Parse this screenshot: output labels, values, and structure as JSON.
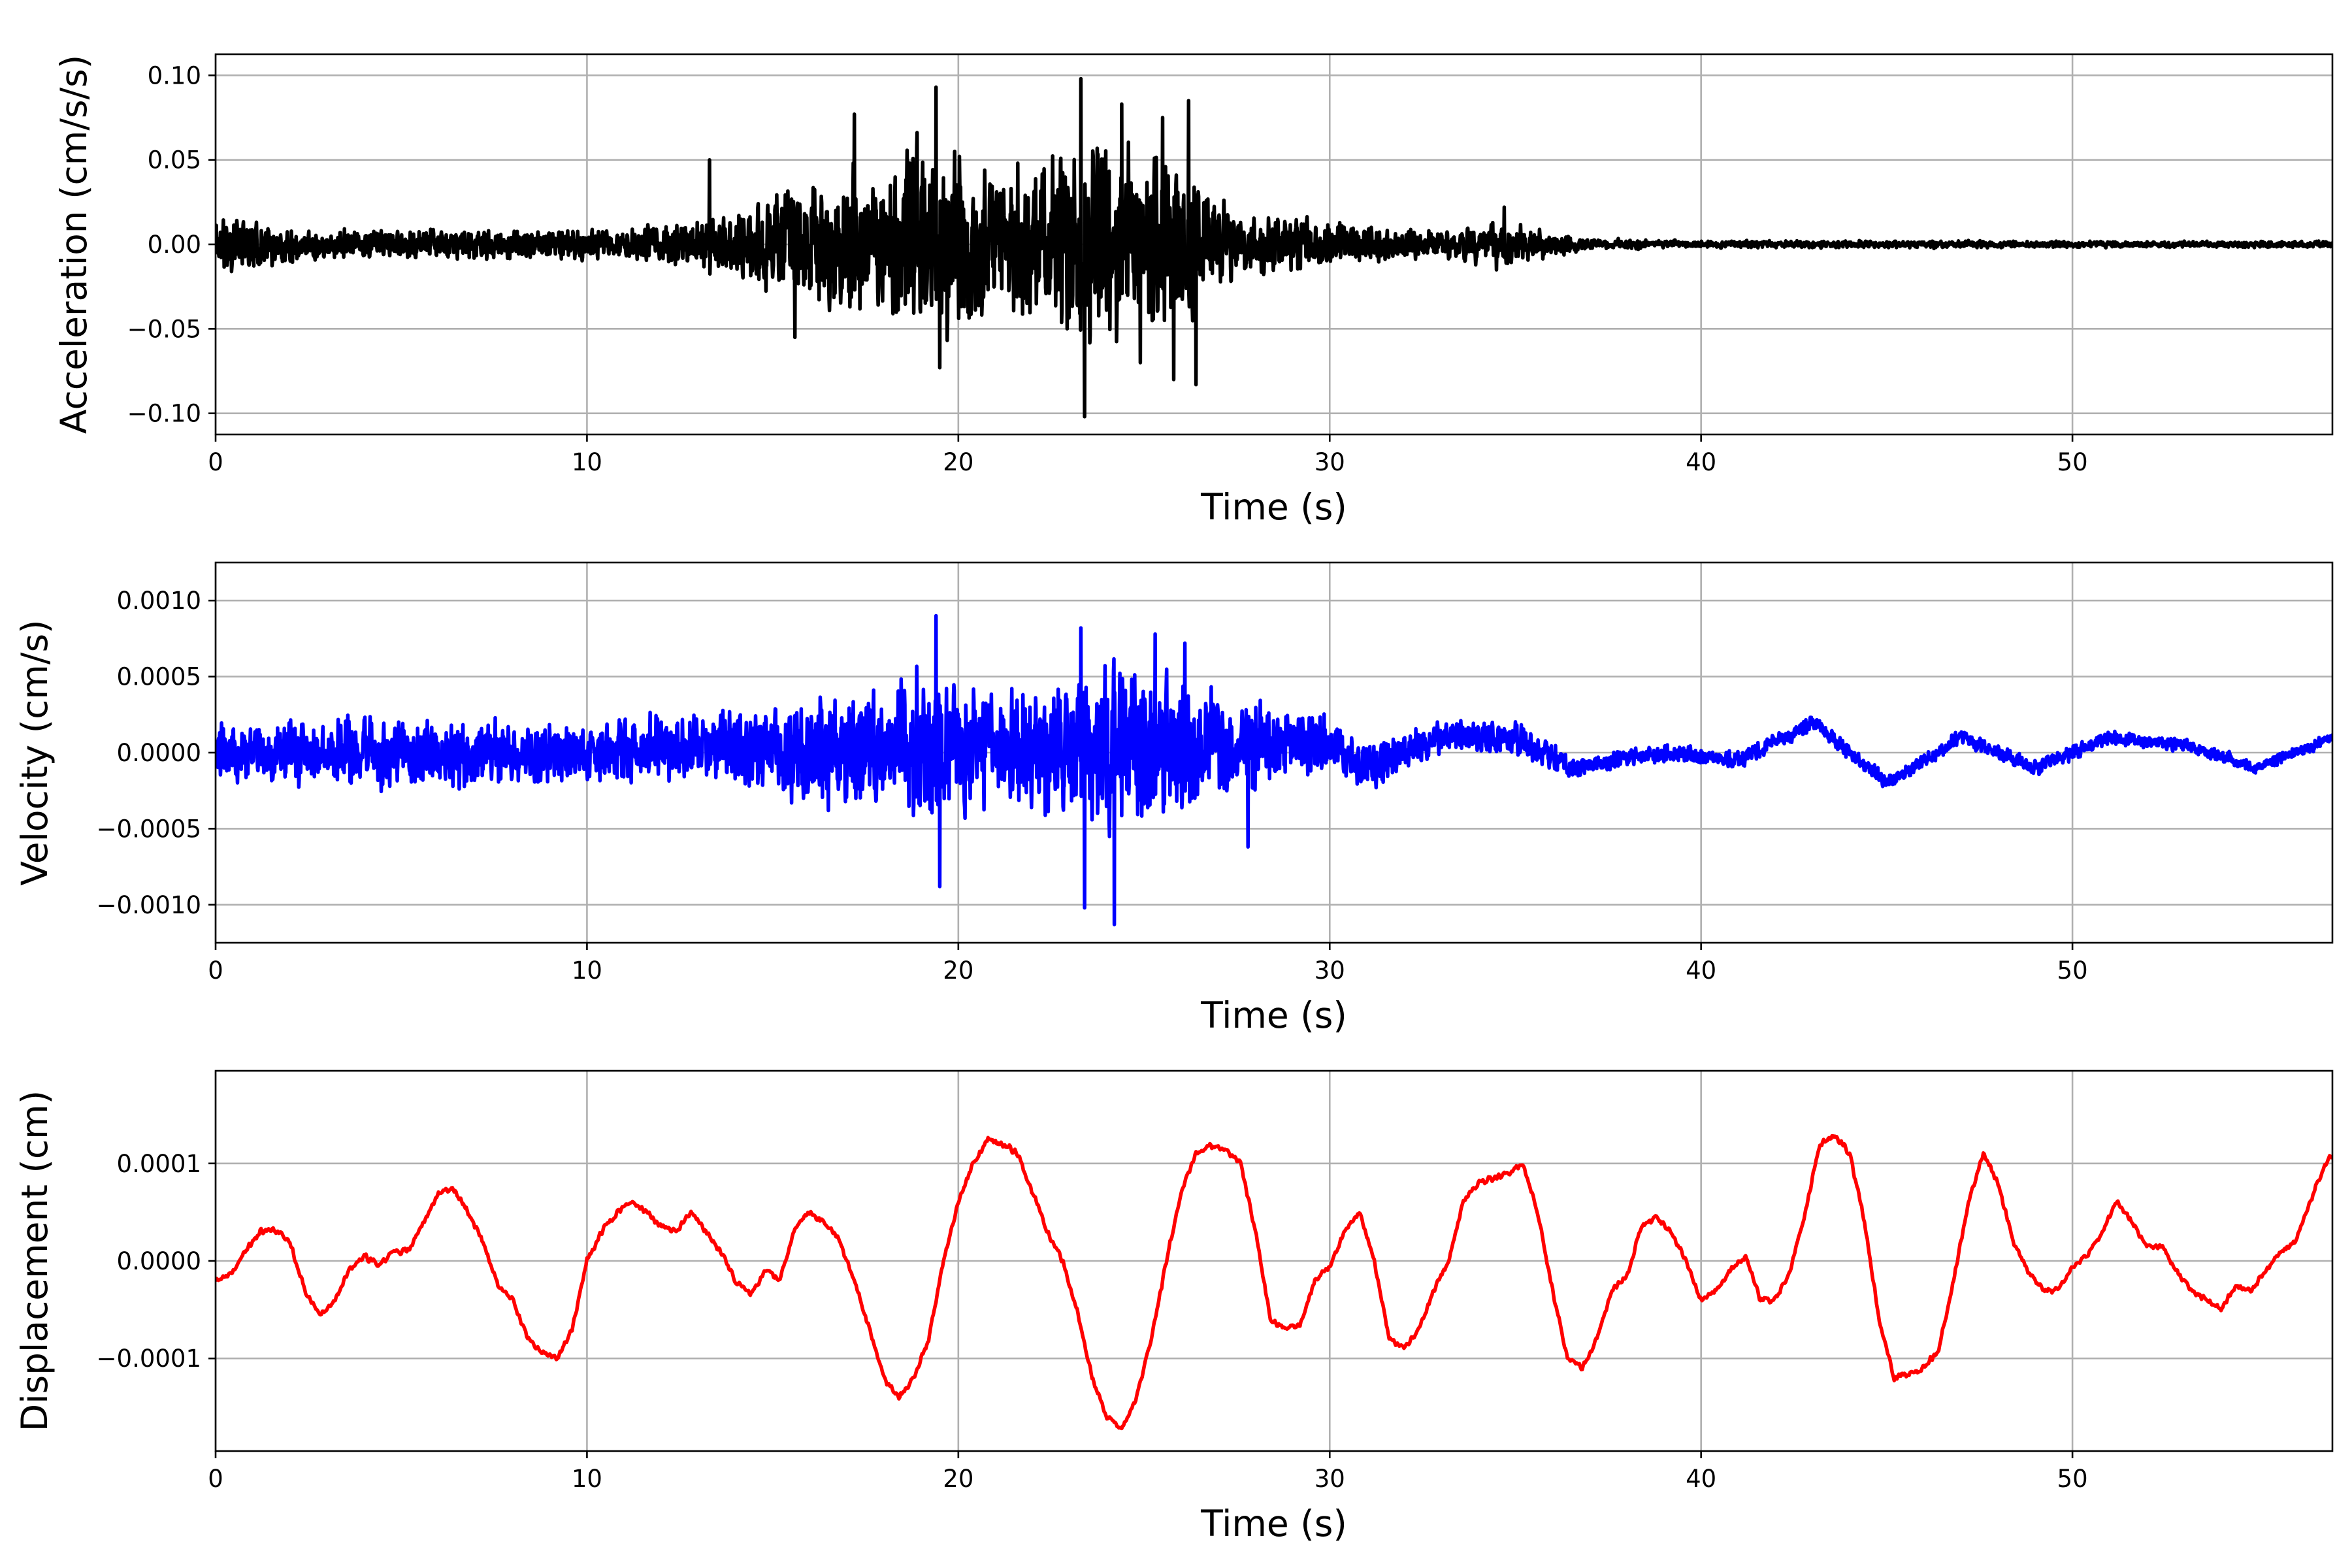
{
  "chart_data": [
    {
      "type": "line",
      "title": "",
      "xlabel": "Time (s)",
      "ylabel": "Acceleration (cm/s/s)",
      "xlim": [
        0,
        57
      ],
      "ylim": [
        -0.1125,
        0.1125
      ],
      "xticks": [
        0,
        10,
        20,
        30,
        40,
        50
      ],
      "xtick_labels": [
        "0",
        "10",
        "20",
        "30",
        "40",
        "50"
      ],
      "yticks": [
        -0.1,
        -0.05,
        0.0,
        0.05,
        0.1
      ],
      "ytick_labels": [
        "−0.10",
        "−0.05",
        "0.00",
        "0.05",
        "0.10"
      ],
      "grid": true,
      "series": [
        {
          "color": "#000000",
          "envelope": [
            [
              0,
              0.028
            ],
            [
              1,
              0.018
            ],
            [
              3,
              0.012
            ],
            [
              6,
              0.011
            ],
            [
              9,
              0.011
            ],
            [
              11,
              0.012
            ],
            [
              13,
              0.02
            ],
            [
              14,
              0.025
            ],
            [
              15,
              0.04
            ],
            [
              16,
              0.055
            ],
            [
              17,
              0.06
            ],
            [
              18,
              0.05
            ],
            [
              19,
              0.075
            ],
            [
              20,
              0.07
            ],
            [
              21,
              0.055
            ],
            [
              22,
              0.06
            ],
            [
              23,
              0.08
            ],
            [
              24,
              0.085
            ],
            [
              25,
              0.07
            ],
            [
              26,
              0.07
            ],
            [
              27,
              0.035
            ],
            [
              28,
              0.025
            ],
            [
              30,
              0.022
            ],
            [
              31,
              0.014
            ],
            [
              33,
              0.01
            ],
            [
              34.5,
              0.02
            ],
            [
              35.5,
              0.012
            ],
            [
              37,
              0.004
            ],
            [
              40,
              0.003
            ],
            [
              45,
              0.003
            ],
            [
              50,
              0.0025
            ],
            [
              57,
              0.0025
            ]
          ],
          "peaks": [
            [
              13.3,
              0.05
            ],
            [
              15.6,
              -0.055
            ],
            [
              17.2,
              0.077
            ],
            [
              19.4,
              0.093
            ],
            [
              19.5,
              -0.073
            ],
            [
              19.9,
              0.055
            ],
            [
              21.6,
              0.048
            ],
            [
              23.3,
              0.098
            ],
            [
              23.4,
              -0.102
            ],
            [
              24.4,
              0.083
            ],
            [
              24.9,
              -0.07
            ],
            [
              25.5,
              0.075
            ],
            [
              25.8,
              -0.08
            ],
            [
              26.2,
              0.085
            ],
            [
              26.4,
              -0.083
            ],
            [
              34.7,
              0.022
            ]
          ],
          "seed": 11
        }
      ]
    },
    {
      "type": "line",
      "title": "",
      "xlabel": "Time (s)",
      "ylabel": "Velocity (cm/s)",
      "xlim": [
        0,
        57
      ],
      "ylim": [
        -0.00125,
        0.00125
      ],
      "xticks": [
        0,
        10,
        20,
        30,
        40,
        50
      ],
      "xtick_labels": [
        "0",
        "10",
        "20",
        "30",
        "40",
        "50"
      ],
      "yticks": [
        -0.001,
        -0.0005,
        0.0,
        0.0005,
        0.001
      ],
      "ytick_labels": [
        "−0.0010",
        "−0.0005",
        "0.0000",
        "0.0005",
        "0.0010"
      ],
      "grid": true,
      "series": [
        {
          "color": "#0000ff",
          "trend": [
            [
              0,
              0
            ],
            [
              10,
              0
            ],
            [
              13,
              5e-05
            ],
            [
              15,
              0
            ],
            [
              20,
              0
            ],
            [
              25,
              5e-05
            ],
            [
              30,
              5e-05
            ],
            [
              31,
              -0.0001
            ],
            [
              33,
              0.0001
            ],
            [
              35,
              0.0001
            ],
            [
              36.5,
              -0.0001
            ],
            [
              39,
              0
            ],
            [
              41,
              -5e-05
            ],
            [
              43,
              0.0002
            ],
            [
              45,
              -0.0002
            ],
            [
              47,
              0.0001
            ],
            [
              49,
              -0.0001
            ],
            [
              51,
              0.0001
            ],
            [
              53,
              5e-05
            ],
            [
              55,
              -0.0001
            ],
            [
              57,
              0.0001
            ]
          ],
          "envelope": [
            [
              0,
              0.00025
            ],
            [
              5,
              0.0003
            ],
            [
              10,
              0.00025
            ],
            [
              13,
              0.0003
            ],
            [
              15,
              0.0004
            ],
            [
              17,
              0.0005
            ],
            [
              19,
              0.0006
            ],
            [
              21,
              0.0005
            ],
            [
              23,
              0.0007
            ],
            [
              24,
              0.00075
            ],
            [
              26,
              0.0006
            ],
            [
              27.5,
              0.0004
            ],
            [
              29,
              0.0003
            ],
            [
              31,
              0.0002
            ],
            [
              33,
              0.00015
            ],
            [
              35,
              0.00015
            ],
            [
              37,
              8e-05
            ],
            [
              57,
              5e-05
            ]
          ],
          "peaks": [
            [
              19.4,
              0.0009
            ],
            [
              19.5,
              -0.00088
            ],
            [
              23.3,
              0.00082
            ],
            [
              23.4,
              -0.00102
            ],
            [
              24.2,
              -0.00113
            ],
            [
              25.3,
              0.00078
            ],
            [
              26.1,
              0.00072
            ],
            [
              27.8,
              -0.00062
            ]
          ],
          "seed": 23
        }
      ]
    },
    {
      "type": "line",
      "title": "",
      "xlabel": "Time (s)",
      "ylabel": "Displacement (cm)",
      "xlim": [
        0,
        57
      ],
      "ylim": [
        -0.000195,
        0.000195
      ],
      "xticks": [
        0,
        10,
        20,
        30,
        40,
        50
      ],
      "xtick_labels": [
        "0",
        "10",
        "20",
        "30",
        "40",
        "50"
      ],
      "yticks": [
        -0.0001,
        0.0,
        0.0001
      ],
      "ytick_labels": [
        "−0.0001",
        "0.0000",
        "0.0001"
      ],
      "grid": true,
      "series": [
        {
          "color": "#ff0000",
          "points": [
            [
              0,
              -2e-05
            ],
            [
              0.4,
              -1.5e-05
            ],
            [
              0.8,
              1e-05
            ],
            [
              1.2,
              3e-05
            ],
            [
              1.6,
              3.2e-05
            ],
            [
              2.0,
              2e-05
            ],
            [
              2.4,
              -3e-05
            ],
            [
              2.8,
              -5.5e-05
            ],
            [
              3.2,
              -4e-05
            ],
            [
              3.6,
              -1e-05
            ],
            [
              4.0,
              5e-06
            ],
            [
              4.4,
              -5e-06
            ],
            [
              4.8,
              1e-05
            ],
            [
              5.2,
              1e-05
            ],
            [
              5.6,
              4e-05
            ],
            [
              6.0,
              7e-05
            ],
            [
              6.4,
              7.5e-05
            ],
            [
              6.8,
              5e-05
            ],
            [
              7.2,
              2e-05
            ],
            [
              7.6,
              -2.5e-05
            ],
            [
              8.0,
              -4e-05
            ],
            [
              8.4,
              -8e-05
            ],
            [
              8.8,
              -9.5e-05
            ],
            [
              9.2,
              -0.0001
            ],
            [
              9.6,
              -7e-05
            ],
            [
              10.0,
              0.0
            ],
            [
              10.4,
              3e-05
            ],
            [
              10.8,
              5e-05
            ],
            [
              11.2,
              6e-05
            ],
            [
              11.6,
              5e-05
            ],
            [
              12.0,
              3.5e-05
            ],
            [
              12.4,
              3e-05
            ],
            [
              12.8,
              5e-05
            ],
            [
              13.2,
              3e-05
            ],
            [
              13.6,
              1e-05
            ],
            [
              14.0,
              -2e-05
            ],
            [
              14.4,
              -3.5e-05
            ],
            [
              14.8,
              -1e-05
            ],
            [
              15.2,
              -2e-05
            ],
            [
              15.6,
              3.5e-05
            ],
            [
              16.0,
              5e-05
            ],
            [
              16.4,
              4e-05
            ],
            [
              16.8,
              2e-05
            ],
            [
              17.2,
              -2e-05
            ],
            [
              17.6,
              -7e-05
            ],
            [
              18.0,
              -0.00012
            ],
            [
              18.4,
              -0.00014
            ],
            [
              18.8,
              -0.00012
            ],
            [
              19.2,
              -8e-05
            ],
            [
              19.6,
              0.0
            ],
            [
              20.0,
              6e-05
            ],
            [
              20.4,
              0.0001
            ],
            [
              20.8,
              0.000125
            ],
            [
              21.2,
              0.00012
            ],
            [
              21.6,
              0.00011
            ],
            [
              22.0,
              7e-05
            ],
            [
              22.4,
              3e-05
            ],
            [
              22.8,
              0.0
            ],
            [
              23.2,
              -5e-05
            ],
            [
              23.6,
              -0.00012
            ],
            [
              24.0,
              -0.00016
            ],
            [
              24.4,
              -0.000172
            ],
            [
              24.8,
              -0.00014
            ],
            [
              25.2,
              -8e-05
            ],
            [
              25.6,
              0.0
            ],
            [
              26.0,
              7e-05
            ],
            [
              26.4,
              0.00011
            ],
            [
              26.8,
              0.000118
            ],
            [
              27.2,
              0.000115
            ],
            [
              27.6,
              0.0001
            ],
            [
              28.0,
              3e-05
            ],
            [
              28.4,
              -6e-05
            ],
            [
              28.8,
              -7e-05
            ],
            [
              29.2,
              -6.5e-05
            ],
            [
              29.6,
              -2e-05
            ],
            [
              30.0,
              -5e-06
            ],
            [
              30.4,
              3e-05
            ],
            [
              30.8,
              5e-05
            ],
            [
              31.2,
              0.0
            ],
            [
              31.6,
              -8e-05
            ],
            [
              32.0,
              -9e-05
            ],
            [
              32.4,
              -7e-05
            ],
            [
              32.8,
              -3e-05
            ],
            [
              33.2,
              0.0
            ],
            [
              33.6,
              6e-05
            ],
            [
              34.0,
              8e-05
            ],
            [
              34.4,
              8.5e-05
            ],
            [
              34.8,
              9e-05
            ],
            [
              35.2,
              0.0001
            ],
            [
              35.6,
              5e-05
            ],
            [
              36.0,
              -3e-05
            ],
            [
              36.4,
              -0.0001
            ],
            [
              36.8,
              -0.00011
            ],
            [
              37.2,
              -8e-05
            ],
            [
              37.6,
              -3e-05
            ],
            [
              38.0,
              -1.5e-05
            ],
            [
              38.4,
              3.5e-05
            ],
            [
              38.8,
              4.5e-05
            ],
            [
              39.2,
              3e-05
            ],
            [
              39.6,
              0.0
            ],
            [
              40.0,
              -4e-05
            ],
            [
              40.4,
              -3e-05
            ],
            [
              40.8,
              -1e-05
            ],
            [
              41.2,
              5e-06
            ],
            [
              41.6,
              -4e-05
            ],
            [
              42.0,
              -4e-05
            ],
            [
              42.4,
              -1e-05
            ],
            [
              42.8,
              5e-05
            ],
            [
              43.2,
              0.00012
            ],
            [
              43.6,
              0.00013
            ],
            [
              44.0,
              0.00011
            ],
            [
              44.4,
              4e-05
            ],
            [
              44.8,
              -6e-05
            ],
            [
              45.2,
              -0.00012
            ],
            [
              45.6,
              -0.000115
            ],
            [
              46.0,
              -0.00011
            ],
            [
              46.4,
              -9e-05
            ],
            [
              46.8,
              -2e-05
            ],
            [
              47.2,
              6e-05
            ],
            [
              47.6,
              0.00011
            ],
            [
              48.0,
              8e-05
            ],
            [
              48.4,
              2e-05
            ],
            [
              48.8,
              -1e-05
            ],
            [
              49.2,
              -3e-05
            ],
            [
              49.6,
              -3e-05
            ],
            [
              50.0,
              -5e-06
            ],
            [
              50.4,
              5e-06
            ],
            [
              50.8,
              3e-05
            ],
            [
              51.2,
              6e-05
            ],
            [
              51.6,
              4e-05
            ],
            [
              52.0,
              1.5e-05
            ],
            [
              52.4,
              1.5e-05
            ],
            [
              52.8,
              -1e-05
            ],
            [
              53.2,
              -3e-05
            ],
            [
              53.6,
              -4e-05
            ],
            [
              54.0,
              -5e-05
            ],
            [
              54.4,
              -2.5e-05
            ],
            [
              54.8,
              -3e-05
            ],
            [
              55.2,
              -1e-05
            ],
            [
              55.6,
              1e-05
            ],
            [
              56.0,
              2e-05
            ],
            [
              56.4,
              6e-05
            ],
            [
              56.8,
              0.0001
            ],
            [
              57.0,
              0.00011
            ]
          ],
          "seed": 37
        }
      ]
    }
  ]
}
